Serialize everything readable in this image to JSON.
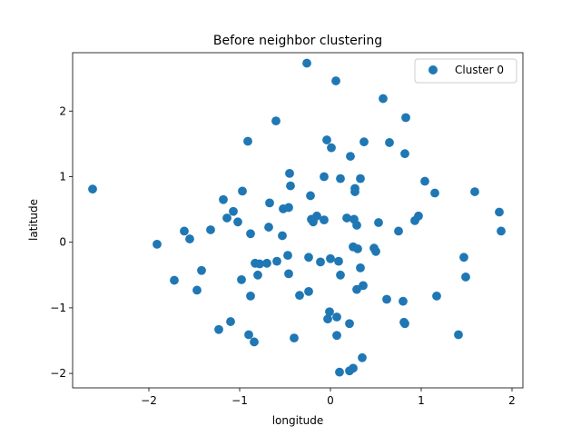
{
  "chart_data": {
    "type": "scatter",
    "title": "Before neighbor clustering",
    "xlabel": "longitude",
    "ylabel": "latitude",
    "xlim": [
      -2.84,
      2.12
    ],
    "ylim": [
      -2.22,
      2.89
    ],
    "xticks": [
      -2,
      -1,
      0,
      1,
      2
    ],
    "xtick_labels": [
      "−2",
      "−1",
      "0",
      "1",
      "2"
    ],
    "yticks": [
      -2,
      -1,
      0,
      1,
      2
    ],
    "ytick_labels": [
      "−2",
      "−1",
      "0",
      "1",
      "2"
    ],
    "grid": false,
    "legend": {
      "position": "top-right"
    },
    "series": [
      {
        "name": "Cluster 0",
        "color": "#1f77b4",
        "points": [
          [
            -2.62,
            0.81
          ],
          [
            -1.91,
            -0.03
          ],
          [
            -1.72,
            -0.58
          ],
          [
            -1.61,
            0.17
          ],
          [
            -1.55,
            0.05
          ],
          [
            -1.47,
            -0.73
          ],
          [
            -1.42,
            -0.43
          ],
          [
            -1.32,
            0.19
          ],
          [
            -1.23,
            -1.33
          ],
          [
            -1.18,
            0.65
          ],
          [
            -1.14,
            0.37
          ],
          [
            -1.1,
            -1.21
          ],
          [
            -1.07,
            0.47
          ],
          [
            -1.02,
            0.31
          ],
          [
            -0.98,
            -0.57
          ],
          [
            -0.97,
            0.78
          ],
          [
            -0.91,
            1.54
          ],
          [
            -0.9,
            -1.41
          ],
          [
            -0.88,
            -0.82
          ],
          [
            -0.88,
            0.13
          ],
          [
            -0.84,
            -1.52
          ],
          [
            -0.83,
            -0.32
          ],
          [
            -0.8,
            -0.5
          ],
          [
            -0.78,
            -0.33
          ],
          [
            -0.7,
            -0.32
          ],
          [
            -0.68,
            0.23
          ],
          [
            -0.67,
            0.6
          ],
          [
            -0.6,
            1.85
          ],
          [
            -0.59,
            -0.29
          ],
          [
            -0.53,
            0.1
          ],
          [
            -0.52,
            0.51
          ],
          [
            -0.47,
            -0.2
          ],
          [
            -0.46,
            -0.48
          ],
          [
            -0.46,
            0.53
          ],
          [
            -0.45,
            1.05
          ],
          [
            -0.44,
            0.86
          ],
          [
            -0.4,
            -1.46
          ],
          [
            -0.34,
            -0.81
          ],
          [
            -0.26,
            2.73
          ],
          [
            -0.24,
            -0.23
          ],
          [
            -0.24,
            -0.75
          ],
          [
            -0.22,
            0.71
          ],
          [
            -0.21,
            0.35
          ],
          [
            -0.19,
            0.31
          ],
          [
            -0.15,
            0.4
          ],
          [
            -0.11,
            -0.3
          ],
          [
            -0.07,
            1.0
          ],
          [
            -0.07,
            0.34
          ],
          [
            -0.04,
            1.56
          ],
          [
            -0.03,
            -1.17
          ],
          [
            -0.01,
            -1.06
          ],
          [
            0.0,
            -0.25
          ],
          [
            0.01,
            1.44
          ],
          [
            0.06,
            2.46
          ],
          [
            0.07,
            -1.14
          ],
          [
            0.07,
            -1.42
          ],
          [
            0.09,
            -0.29
          ],
          [
            0.1,
            -1.98
          ],
          [
            0.11,
            -0.5
          ],
          [
            0.11,
            0.97
          ],
          [
            0.18,
            0.37
          ],
          [
            0.21,
            -1.96
          ],
          [
            0.21,
            -1.24
          ],
          [
            0.22,
            1.31
          ],
          [
            0.25,
            -1.92
          ],
          [
            0.25,
            -0.07
          ],
          [
            0.26,
            0.35
          ],
          [
            0.27,
            0.77
          ],
          [
            0.27,
            0.82
          ],
          [
            0.29,
            -0.72
          ],
          [
            0.29,
            0.26
          ],
          [
            0.3,
            -0.1
          ],
          [
            0.33,
            -0.39
          ],
          [
            0.33,
            0.97
          ],
          [
            0.35,
            -1.76
          ],
          [
            0.36,
            -0.66
          ],
          [
            0.37,
            1.53
          ],
          [
            0.48,
            -0.09
          ],
          [
            0.5,
            -0.14
          ],
          [
            0.53,
            0.3
          ],
          [
            0.58,
            2.19
          ],
          [
            0.62,
            -0.87
          ],
          [
            0.65,
            1.52
          ],
          [
            0.75,
            0.17
          ],
          [
            0.8,
            -0.9
          ],
          [
            0.81,
            -1.22
          ],
          [
            0.82,
            -1.24
          ],
          [
            0.82,
            1.35
          ],
          [
            0.83,
            1.9
          ],
          [
            0.93,
            0.33
          ],
          [
            0.97,
            0.4
          ],
          [
            1.04,
            0.93
          ],
          [
            1.15,
            0.75
          ],
          [
            1.17,
            -0.82
          ],
          [
            1.41,
            -1.41
          ],
          [
            1.47,
            -0.23
          ],
          [
            1.49,
            -0.53
          ],
          [
            1.59,
            0.77
          ],
          [
            1.86,
            0.46
          ],
          [
            1.88,
            0.17
          ]
        ]
      }
    ]
  }
}
